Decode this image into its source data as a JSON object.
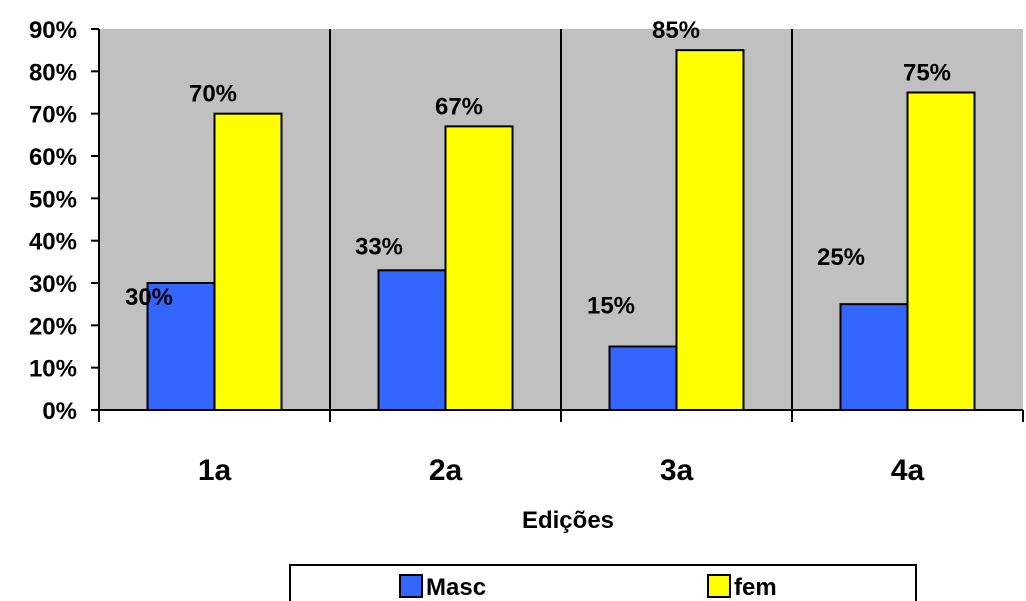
{
  "chart_data": {
    "type": "bar",
    "categories": [
      "1a",
      "2a",
      "3a",
      "4a"
    ],
    "series": [
      {
        "name": "Masc",
        "values": [
          30,
          33,
          15,
          25
        ],
        "color": "#3366ff",
        "labels": [
          "30%",
          "33%",
          "15%",
          "25%"
        ]
      },
      {
        "name": "fem",
        "values": [
          70,
          67,
          85,
          75
        ],
        "color": "#ffff00",
        "labels": [
          "70%",
          "67%",
          "85%",
          "75%"
        ]
      }
    ],
    "xlabel": "Edições",
    "ylabel": "",
    "ylim": [
      0,
      90
    ],
    "yticks": [
      "0%",
      "10%",
      "20%",
      "30%",
      "40%",
      "50%",
      "60%",
      "70%",
      "80%",
      "90%"
    ],
    "plot_background": "#c0c0c0",
    "legend_position": "bottom",
    "grid": false
  }
}
